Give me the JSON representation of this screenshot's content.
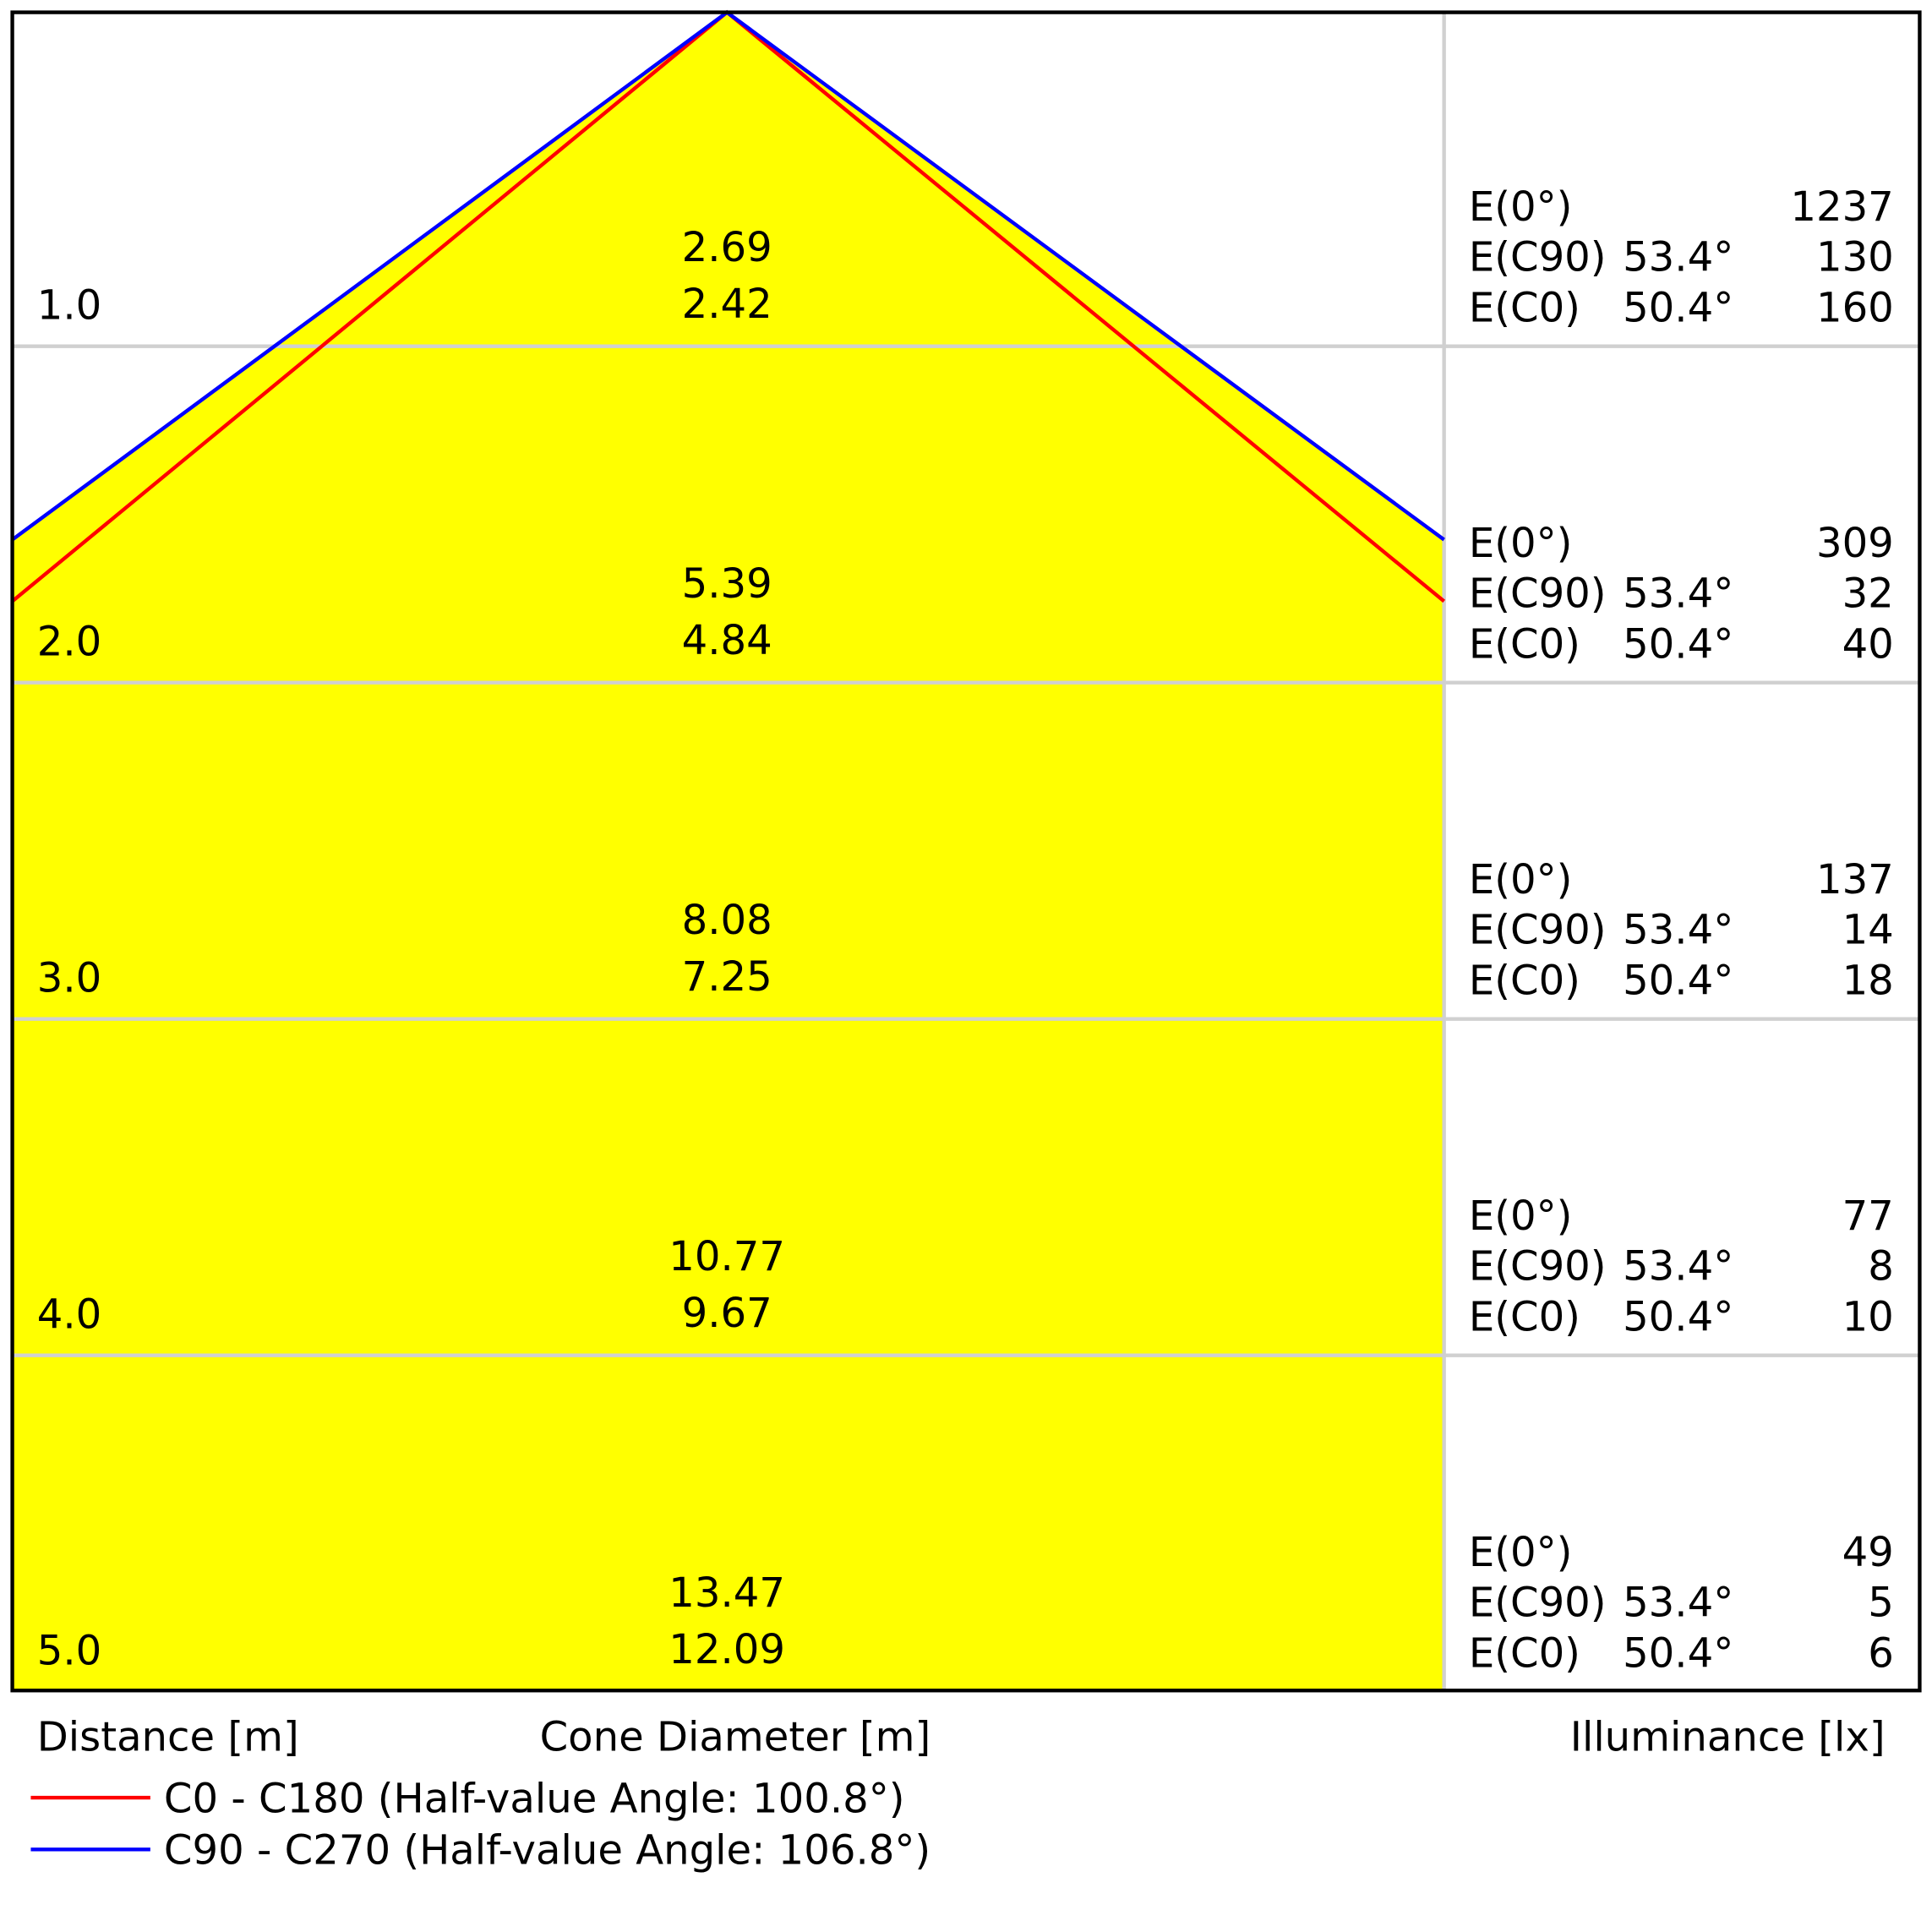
{
  "rows": [
    {
      "distance": "1.0",
      "diameters": [
        "2.69",
        "2.42"
      ],
      "illuminance": [
        {
          "label": "E(0°)",
          "value": "1237"
        },
        {
          "label": "E(C90)",
          "angle": "53.4°",
          "value": "130"
        },
        {
          "label": "E(C0)",
          "angle": "50.4°",
          "value": "160"
        }
      ]
    },
    {
      "distance": "2.0",
      "diameters": [
        "5.39",
        "4.84"
      ],
      "illuminance": [
        {
          "label": "E(0°)",
          "value": "309"
        },
        {
          "label": "E(C90)",
          "angle": "53.4°",
          "value": "32"
        },
        {
          "label": "E(C0)",
          "angle": "50.4°",
          "value": "40"
        }
      ]
    },
    {
      "distance": "3.0",
      "diameters": [
        "8.08",
        "7.25"
      ],
      "illuminance": [
        {
          "label": "E(0°)",
          "value": "137"
        },
        {
          "label": "E(C90)",
          "angle": "53.4°",
          "value": "14"
        },
        {
          "label": "E(C0)",
          "angle": "50.4°",
          "value": "18"
        }
      ]
    },
    {
      "distance": "4.0",
      "diameters": [
        "10.77",
        "9.67"
      ],
      "illuminance": [
        {
          "label": "E(0°)",
          "value": "77"
        },
        {
          "label": "E(C90)",
          "angle": "53.4°",
          "value": "8"
        },
        {
          "label": "E(C0)",
          "angle": "50.4°",
          "value": "10"
        }
      ]
    },
    {
      "distance": "5.0",
      "diameters": [
        "13.47",
        "12.09"
      ],
      "illuminance": [
        {
          "label": "E(0°)",
          "value": "49"
        },
        {
          "label": "E(C90)",
          "angle": "53.4°",
          "value": "5"
        },
        {
          "label": "E(C0)",
          "angle": "50.4°",
          "value": "6"
        }
      ]
    }
  ],
  "axis_labels": {
    "distance": "Distance [m]",
    "diameter": "Cone Diameter [m]",
    "illuminance": "Illuminance [lx]"
  },
  "legend": [
    {
      "name": "C0 - C180 (Half-value Angle: 100.8°)",
      "color": "#ff0000"
    },
    {
      "name": "C90 - C270 (Half-value Angle: 106.8°)",
      "color": "#0000ff"
    }
  ]
}
